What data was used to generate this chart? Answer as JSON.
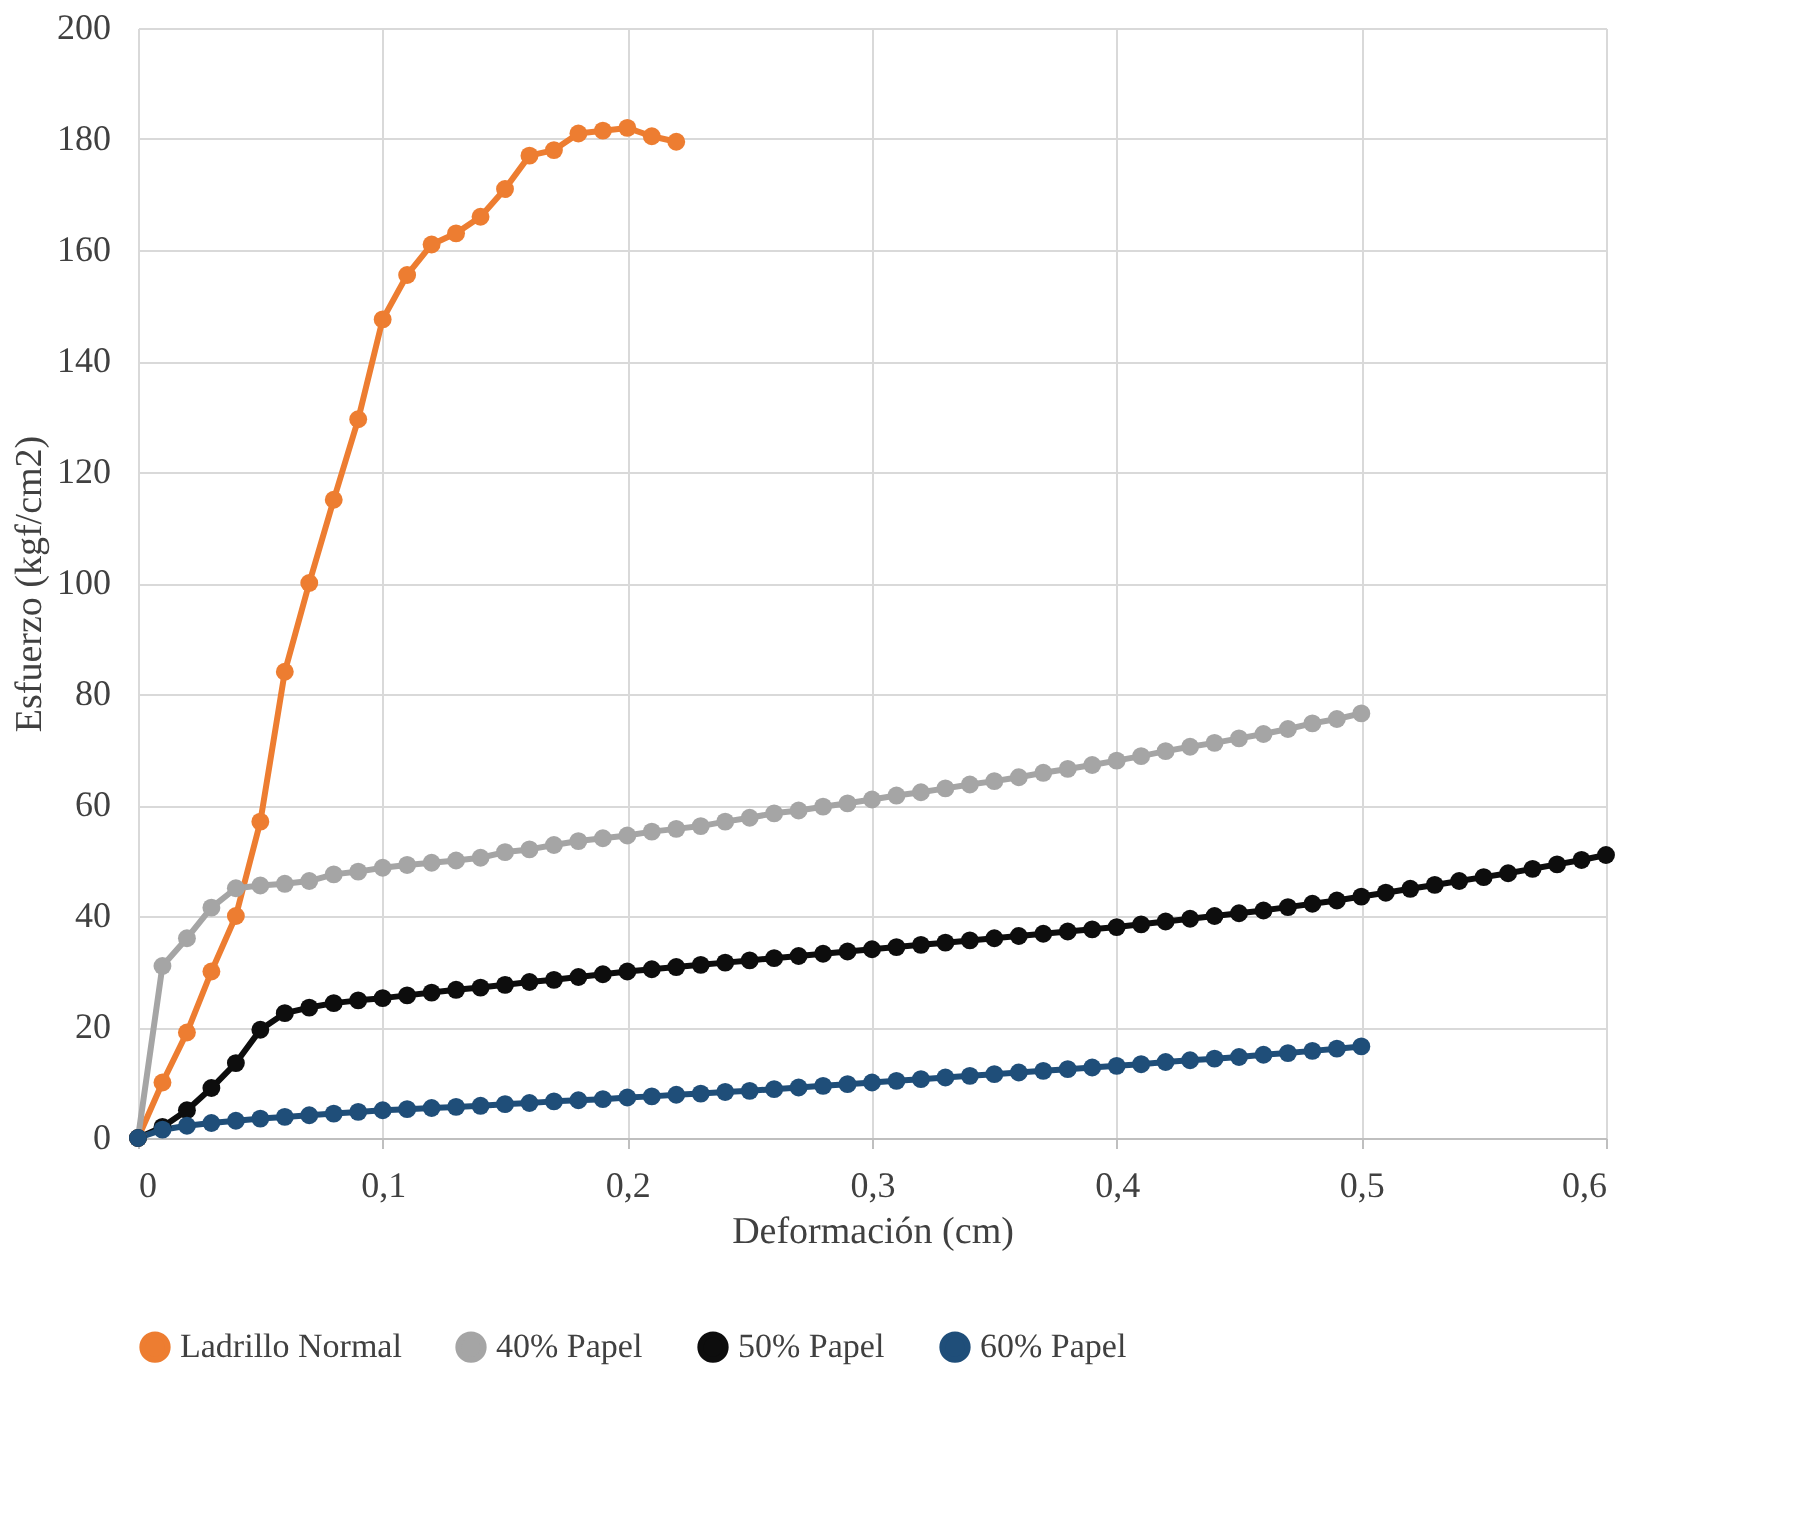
{
  "chart_data": {
    "type": "line",
    "xlabel": "Deformación (cm)",
    "ylabel": "Esfuerzo (kgf/cm2)",
    "xlim": [
      0,
      0.6
    ],
    "ylim": [
      0,
      200
    ],
    "xticks": [
      0,
      {
        "value": 0.1,
        "label": "0,1"
      },
      {
        "value": 0.2,
        "label": "0,2"
      },
      {
        "value": 0.3,
        "label": "0,3"
      },
      {
        "value": 0.4,
        "label": "0,4"
      },
      {
        "value": 0.5,
        "label": "0,5"
      },
      {
        "value": 0.6,
        "label": "0,6"
      }
    ],
    "yticks": [
      0,
      20,
      40,
      60,
      80,
      100,
      120,
      140,
      160,
      180,
      200
    ],
    "grid": true,
    "legend": "bottom",
    "marker": "circle",
    "line_style": "solid",
    "series": [
      {
        "name": "Ladrillo Normal",
        "color": "#ed7d31",
        "x": [
          0,
          0.01,
          0.02,
          0.03,
          0.04,
          0.05,
          0.06,
          0.07,
          0.08,
          0.09,
          0.1,
          0.11,
          0.12,
          0.13,
          0.14,
          0.15,
          0.16,
          0.17,
          0.18,
          0.19,
          0.2,
          0.21,
          0.22
        ],
        "values": [
          0,
          10,
          19,
          30,
          40,
          57,
          84,
          100,
          115,
          129.5,
          147.5,
          155.5,
          161,
          163,
          166,
          171,
          177,
          178,
          181,
          181.5,
          182,
          180.5,
          179.5
        ]
      },
      {
        "name": "40% Papel",
        "color": "#a5a5a5",
        "x": [
          0,
          0.01,
          0.02,
          0.03,
          0.04,
          0.05,
          0.06,
          0.07,
          0.08,
          0.09,
          0.1,
          0.11,
          0.12,
          0.13,
          0.14,
          0.15,
          0.16,
          0.17,
          0.18,
          0.19,
          0.2,
          0.21,
          0.22,
          0.23,
          0.24,
          0.25,
          0.26,
          0.27,
          0.28,
          0.29,
          0.3,
          0.31,
          0.32,
          0.33,
          0.34,
          0.35,
          0.36,
          0.37,
          0.38,
          0.39,
          0.4,
          0.41,
          0.42,
          0.43,
          0.44,
          0.45,
          0.46,
          0.47,
          0.48,
          0.49,
          0.5
        ],
        "values": [
          0,
          31,
          36,
          41.5,
          45,
          45.5,
          45.8,
          46.3,
          47.5,
          48,
          48.7,
          49.2,
          49.6,
          50,
          50.5,
          51.5,
          52,
          52.8,
          53.5,
          54,
          54.5,
          55.2,
          55.7,
          56.2,
          57,
          57.7,
          58.5,
          59,
          59.7,
          60.3,
          61,
          61.7,
          62.3,
          63,
          63.7,
          64.3,
          65,
          65.8,
          66.5,
          67.2,
          68,
          68.8,
          69.7,
          70.5,
          71.2,
          72,
          72.8,
          73.7,
          74.7,
          75.5,
          76.5
        ]
      },
      {
        "name": "50% Papel",
        "color": "#0d0d0d",
        "x": [
          0,
          0.01,
          0.02,
          0.03,
          0.04,
          0.05,
          0.06,
          0.07,
          0.08,
          0.09,
          0.1,
          0.11,
          0.12,
          0.13,
          0.14,
          0.15,
          0.16,
          0.17,
          0.18,
          0.19,
          0.2,
          0.21,
          0.22,
          0.23,
          0.24,
          0.25,
          0.26,
          0.27,
          0.28,
          0.29,
          0.3,
          0.31,
          0.32,
          0.33,
          0.34,
          0.35,
          0.36,
          0.37,
          0.38,
          0.39,
          0.4,
          0.41,
          0.42,
          0.43,
          0.44,
          0.45,
          0.46,
          0.47,
          0.48,
          0.49,
          0.5,
          0.51,
          0.52,
          0.53,
          0.54,
          0.55,
          0.56,
          0.57,
          0.58,
          0.59,
          0.6
        ],
        "values": [
          0,
          2,
          5,
          9,
          13.5,
          19.5,
          22.5,
          23.5,
          24.3,
          24.8,
          25.2,
          25.7,
          26.2,
          26.7,
          27.1,
          27.6,
          28.1,
          28.5,
          29,
          29.5,
          30,
          30.4,
          30.8,
          31.2,
          31.6,
          32,
          32.4,
          32.8,
          33.2,
          33.6,
          34,
          34.4,
          34.8,
          35.2,
          35.6,
          36,
          36.4,
          36.8,
          37.2,
          37.6,
          38,
          38.5,
          39,
          39.5,
          40,
          40.5,
          41,
          41.6,
          42.2,
          42.8,
          43.5,
          44.2,
          44.9,
          45.6,
          46.3,
          47,
          47.7,
          48.5,
          49.3,
          50.1,
          51
        ]
      },
      {
        "name": "60% Papel",
        "color": "#1f4e79",
        "x": [
          0,
          0.01,
          0.02,
          0.03,
          0.04,
          0.05,
          0.06,
          0.07,
          0.08,
          0.09,
          0.1,
          0.11,
          0.12,
          0.13,
          0.14,
          0.15,
          0.16,
          0.17,
          0.18,
          0.19,
          0.2,
          0.21,
          0.22,
          0.23,
          0.24,
          0.25,
          0.26,
          0.27,
          0.28,
          0.29,
          0.3,
          0.31,
          0.32,
          0.33,
          0.34,
          0.35,
          0.36,
          0.37,
          0.38,
          0.39,
          0.4,
          0.41,
          0.42,
          0.43,
          0.44,
          0.45,
          0.46,
          0.47,
          0.48,
          0.49,
          0.5
        ],
        "values": [
          0,
          1.5,
          2.2,
          2.7,
          3.1,
          3.5,
          3.8,
          4.1,
          4.4,
          4.7,
          5,
          5.2,
          5.4,
          5.6,
          5.8,
          6.1,
          6.3,
          6.6,
          6.8,
          7,
          7.3,
          7.5,
          7.8,
          8,
          8.3,
          8.5,
          8.8,
          9.1,
          9.4,
          9.7,
          10,
          10.3,
          10.6,
          10.9,
          11.2,
          11.5,
          11.8,
          12.1,
          12.4,
          12.7,
          13,
          13.3,
          13.7,
          14,
          14.3,
          14.6,
          15,
          15.3,
          15.7,
          16.1,
          16.5
        ]
      }
    ]
  }
}
